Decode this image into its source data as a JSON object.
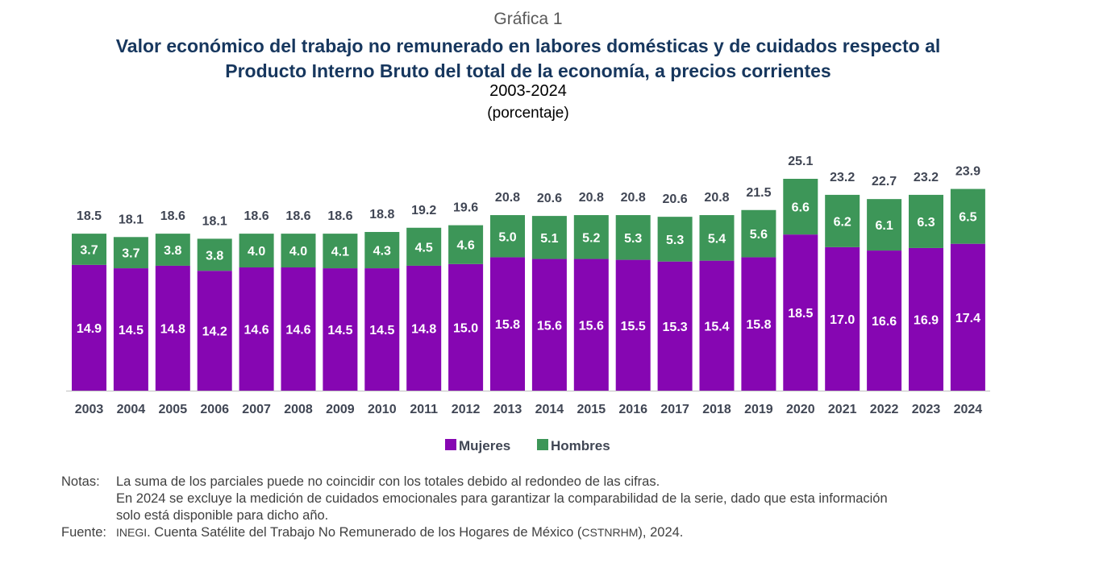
{
  "header": {
    "kicker": "Gráfica 1",
    "title_line1": "Valor económico del trabajo no remunerado en labores domésticas y de cuidados respecto al",
    "title_line2": "Producto Interno Bruto del total de la economía, a precios corrientes",
    "period": "2003-2024",
    "unit": "(porcentaje)"
  },
  "chart_data": {
    "type": "bar",
    "stacked": true,
    "title": "Valor económico del trabajo no remunerado en labores domésticas y de cuidados respecto al Producto Interno Bruto del total de la economía, a precios corrientes",
    "xlabel": "",
    "ylabel": "",
    "categories": [
      "2003",
      "2004",
      "2005",
      "2006",
      "2007",
      "2008",
      "2009",
      "2010",
      "2011",
      "2012",
      "2013",
      "2014",
      "2015",
      "2016",
      "2017",
      "2018",
      "2019",
      "2020",
      "2021",
      "2022",
      "2023",
      "2024"
    ],
    "series": [
      {
        "name": "Mujeres",
        "color": "#8606b2",
        "values": [
          14.9,
          14.5,
          14.8,
          14.2,
          14.6,
          14.6,
          14.5,
          14.5,
          14.8,
          15.0,
          15.8,
          15.6,
          15.6,
          15.5,
          15.3,
          15.4,
          15.8,
          18.5,
          17.0,
          16.6,
          16.9,
          17.4
        ]
      },
      {
        "name": "Hombres",
        "color": "#3d9658",
        "values": [
          3.7,
          3.7,
          3.8,
          3.8,
          4.0,
          4.0,
          4.1,
          4.3,
          4.5,
          4.6,
          5.0,
          5.1,
          5.2,
          5.3,
          5.3,
          5.4,
          5.6,
          6.6,
          6.2,
          6.1,
          6.3,
          6.5
        ]
      }
    ],
    "totals": [
      "18.5",
      "18.1",
      "18.6",
      "18.1",
      "18.6",
      "18.6",
      "18.6",
      "18.8",
      "19.2",
      "19.6",
      "20.8",
      "20.6",
      "20.8",
      "20.8",
      "20.6",
      "20.8",
      "21.5",
      "25.1",
      "23.2",
      "22.7",
      "23.2",
      "23.9"
    ],
    "ylim": [
      0,
      25.1
    ],
    "grid": false,
    "legend": "bottom"
  },
  "notes": {
    "label": "Notas:",
    "line1": "La suma de los parciales puede no coincidir con los totales debido al redondeo de las cifras.",
    "line2": "En 2024 se excluye la medición de cuidados emocionales para garantizar la comparabilidad de la serie, dado que esta información",
    "line3": "solo está disponible para dicho año."
  },
  "source": {
    "label": "Fuente:",
    "org": "INEGI",
    "text": ". Cuenta Satélite del Trabajo No Remunerado de los Hogares de México (",
    "abbr": "CSTNRHM",
    "tail": "), 2024."
  }
}
